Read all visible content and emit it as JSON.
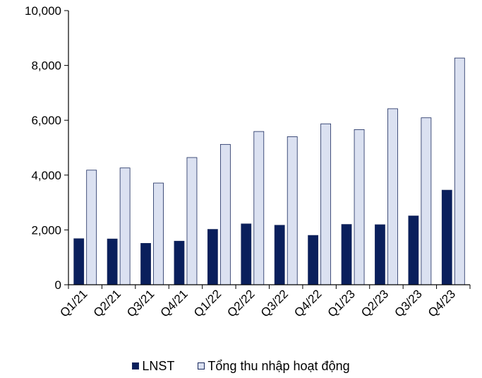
{
  "chart_data": {
    "type": "bar",
    "categories": [
      "Q1/21",
      "Q2/21",
      "Q3/21",
      "Q4/21",
      "Q1/22",
      "Q2/22",
      "Q3/22",
      "Q4/22",
      "Q1/23",
      "Q2/23",
      "Q3/23",
      "Q4/23"
    ],
    "series": [
      {
        "name": "LNST",
        "color": "#0a1f5c",
        "values": [
          1680,
          1670,
          1510,
          1590,
          2020,
          2220,
          2170,
          1800,
          2200,
          2190,
          2510,
          3450
        ]
      },
      {
        "name": "Tổng thu nhập hoạt động",
        "color": "#dbe1f1",
        "values": [
          4180,
          4260,
          3710,
          4640,
          5120,
          5590,
          5400,
          5870,
          5660,
          6420,
          6090,
          8270
        ]
      }
    ],
    "ylim": [
      0,
      10000
    ],
    "yticks": [
      0,
      2000,
      4000,
      6000,
      8000,
      10000
    ],
    "ytick_labels": [
      "0",
      "2,000",
      "4,000",
      "6,000",
      "8,000",
      "10,000"
    ],
    "legend_position": "bottom",
    "grid": false,
    "title": "",
    "xlabel": "",
    "ylabel": ""
  }
}
